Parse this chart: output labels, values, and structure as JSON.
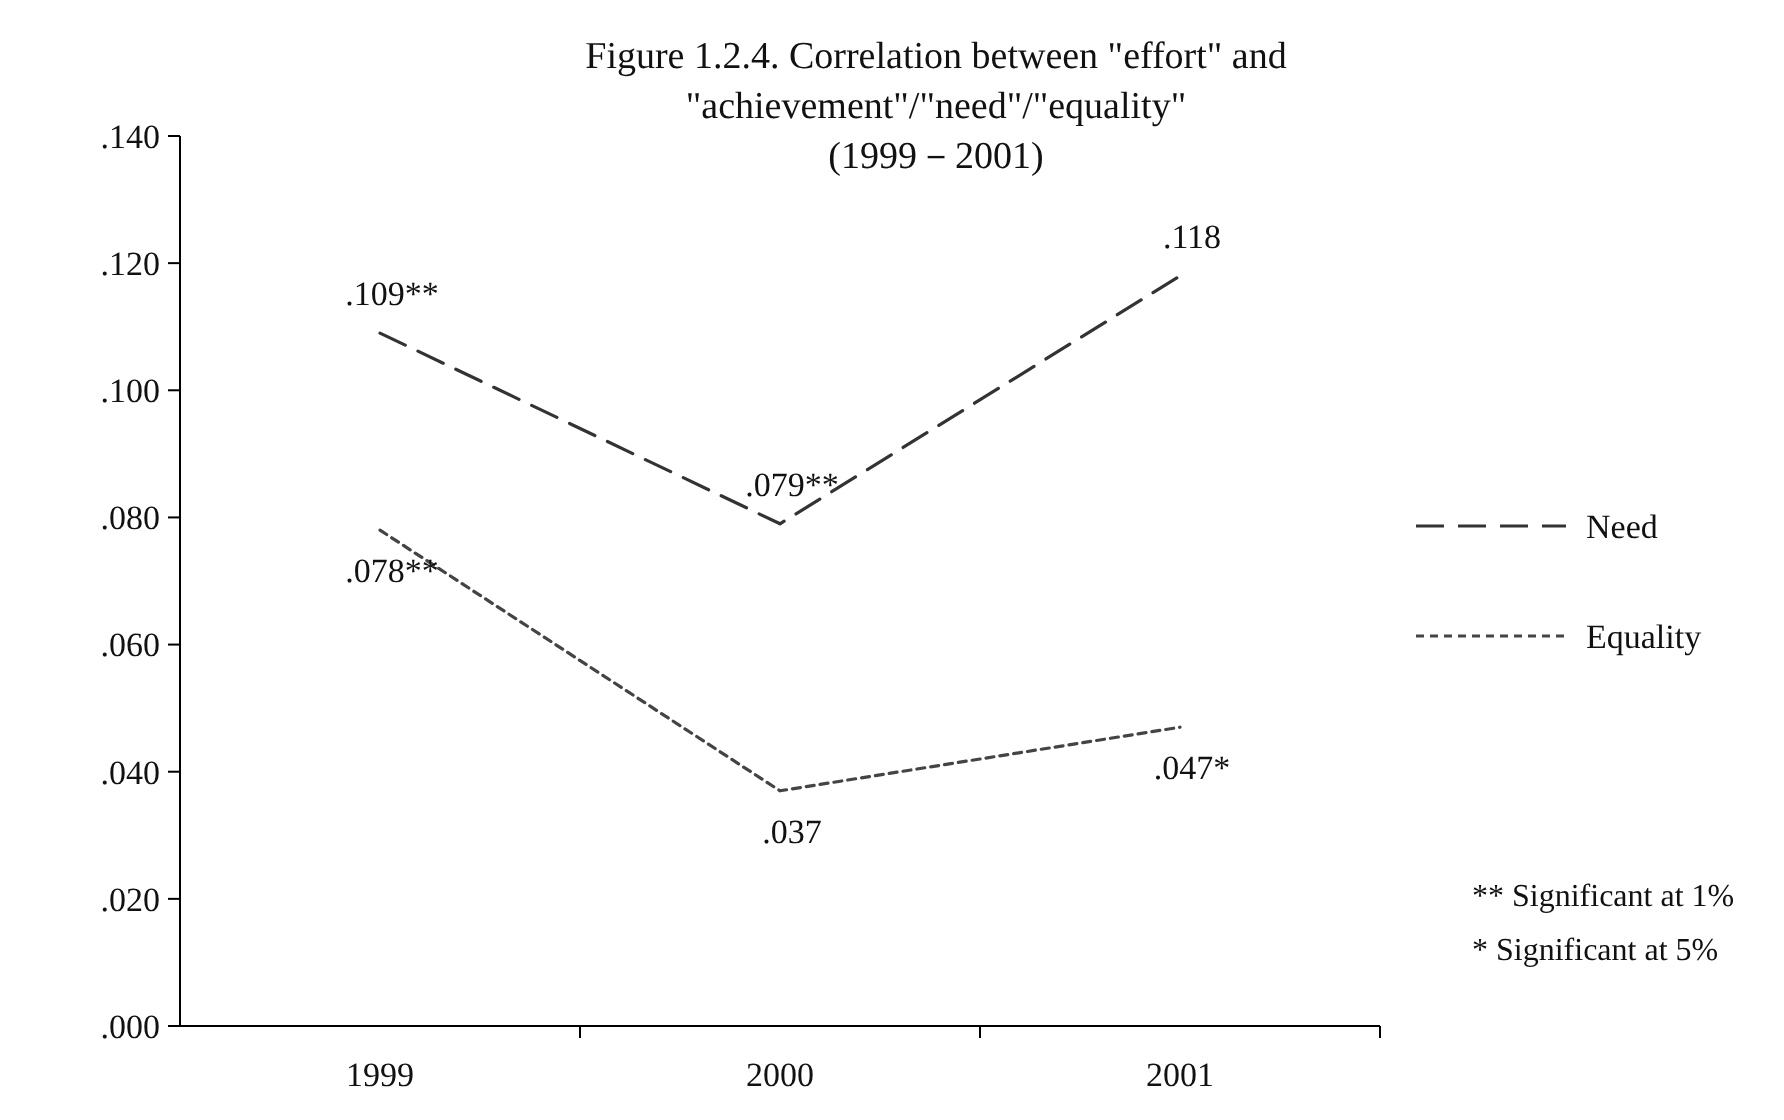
{
  "chart_data": {
    "type": "line",
    "title": "Figure 1.2.4. Correlation between \"effort\" and\n\"achievement\"/\"need\"/\"equality\"\n(1999－2001)",
    "categories": [
      "1999",
      "2000",
      "2001"
    ],
    "series": [
      {
        "name": "Need",
        "color": "#333333",
        "line_style": "dashed",
        "values": [
          0.109,
          0.079,
          0.118
        ],
        "value_labels": [
          ".109**",
          ".079**",
          ".118"
        ]
      },
      {
        "name": "Equality",
        "color": "#444444",
        "line_style": "dotted",
        "values": [
          0.078,
          0.037,
          0.047
        ],
        "value_labels": [
          ".078**",
          ".037",
          ".047*"
        ]
      }
    ],
    "ylim": [
      0,
      0.14
    ],
    "yticks": [
      {
        "value": 0,
        "label": ".000"
      },
      {
        "value": 0.02,
        "label": ".020"
      },
      {
        "value": 0.04,
        "label": ".040"
      },
      {
        "value": 0.06,
        "label": ".060"
      },
      {
        "value": 0.08,
        "label": ".080"
      },
      {
        "value": 0.1,
        "label": ".100"
      },
      {
        "value": 0.12,
        "label": ".120"
      },
      {
        "value": 0.14,
        "label": ".140"
      }
    ],
    "grid": false,
    "legend": "right",
    "marker": "none",
    "annotations": [
      "** Significant at 1%",
      "* Significant at 5%"
    ]
  }
}
